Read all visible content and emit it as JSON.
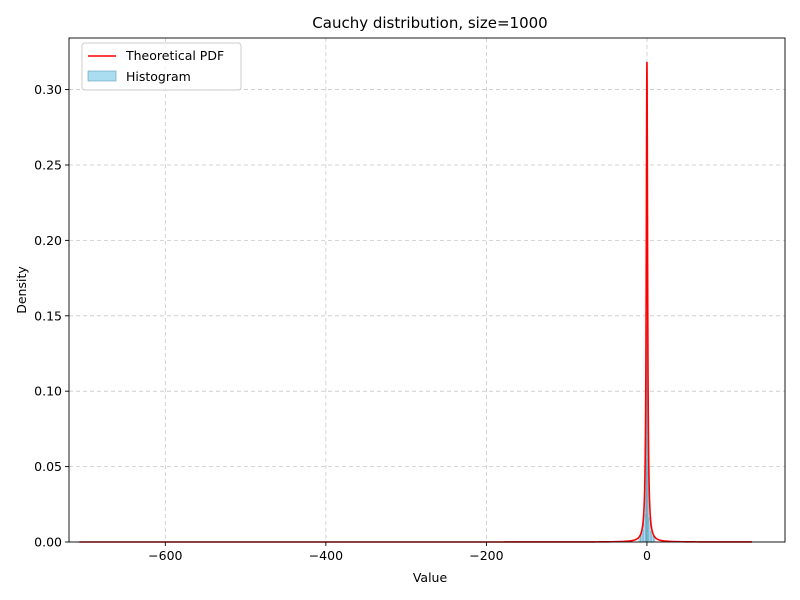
{
  "chart_data": {
    "type": "histogram+line",
    "title": "Cauchy distribution, size=1000",
    "xlabel": "Value",
    "ylabel": "Density",
    "xlim": [
      -720,
      172
    ],
    "ylim": [
      0,
      0.3342
    ],
    "grid": true,
    "legend_position": "upper-left",
    "xticks": [
      -600,
      -400,
      -200,
      0
    ],
    "xtick_labels": [
      "−600",
      "−400",
      "−200",
      "0"
    ],
    "yticks": [
      0.0,
      0.05,
      0.1,
      0.15,
      0.2,
      0.25,
      0.3
    ],
    "ytick_labels": [
      "0.00",
      "0.05",
      "0.10",
      "0.15",
      "0.20",
      "0.25",
      "0.30"
    ],
    "series": [
      {
        "name": "Theoretical PDF",
        "kind": "line",
        "color": "#ff0000",
        "x_range": [
          -707,
          132
        ],
        "x0": 0,
        "gamma": 1,
        "peak": 0.318
      },
      {
        "name": "Histogram",
        "kind": "histogram",
        "color": "#87ceeb",
        "edge_color": "#5f9fb8",
        "bin_edges": [
          -10,
          -8,
          -6,
          -4,
          -2,
          -1,
          0,
          1,
          2,
          4,
          6,
          8,
          10
        ],
        "densities": [
          0.0035,
          0.005,
          0.008,
          0.018,
          0.055,
          0.14,
          0.145,
          0.05,
          0.016,
          0.007,
          0.004,
          0.003
        ]
      }
    ]
  }
}
